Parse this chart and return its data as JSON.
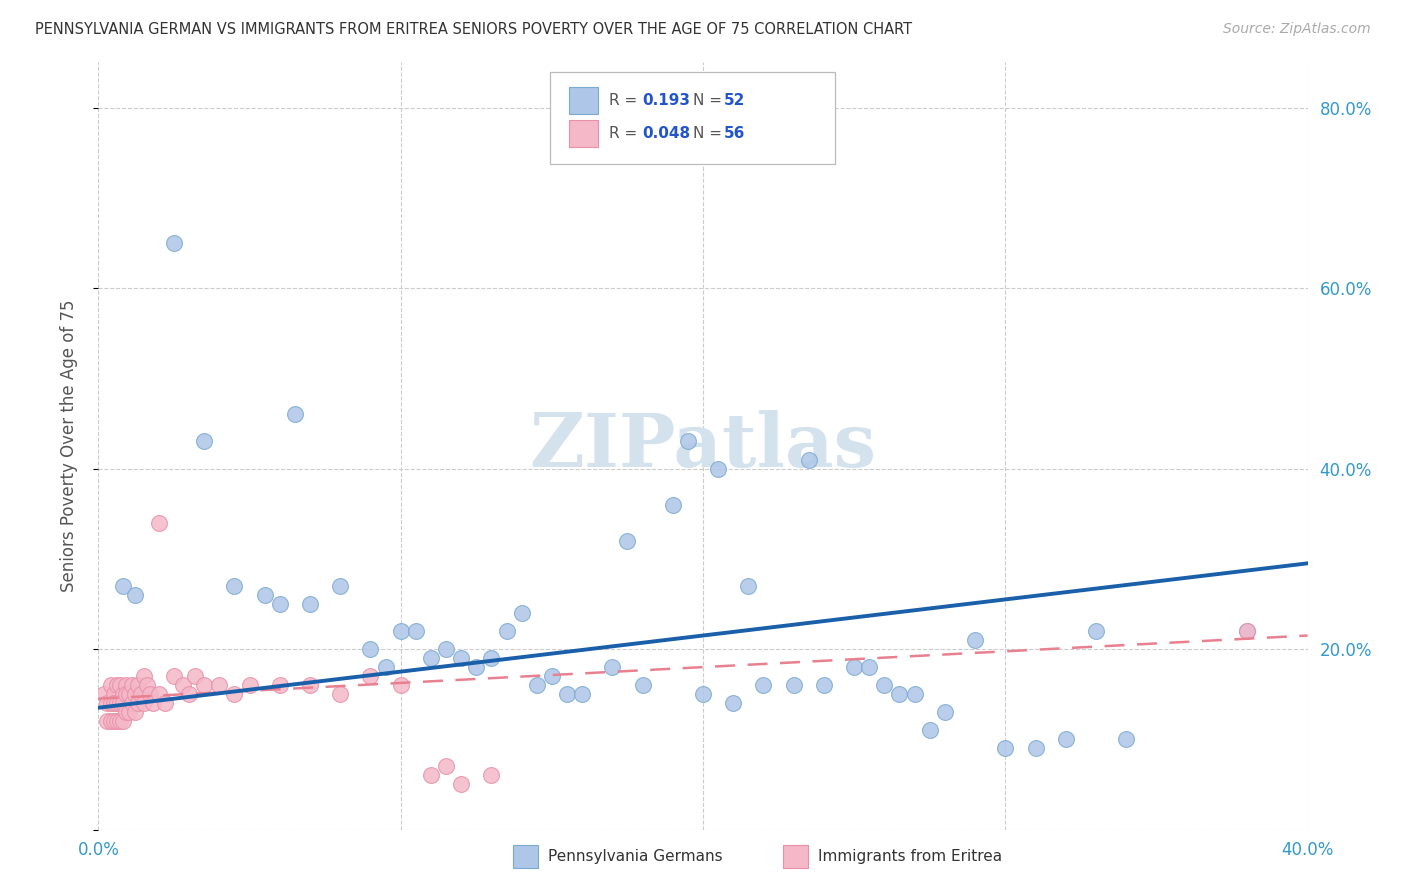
{
  "title": "PENNSYLVANIA GERMAN VS IMMIGRANTS FROM ERITREA SENIORS POVERTY OVER THE AGE OF 75 CORRELATION CHART",
  "source": "Source: ZipAtlas.com",
  "ylabel": "Seniors Poverty Over the Age of 75",
  "xlim": [
    0.0,
    0.4
  ],
  "ylim": [
    0.0,
    0.85
  ],
  "xticks": [
    0.0,
    0.1,
    0.2,
    0.3,
    0.4
  ],
  "xticklabels": [
    "0.0%",
    "",
    "",
    "",
    "40.0%"
  ],
  "yticks": [
    0.0,
    0.2,
    0.4,
    0.6,
    0.8
  ],
  "yticklabels_right": [
    "",
    "20.0%",
    "40.0%",
    "60.0%",
    "80.0%"
  ],
  "legend1_label": "Pennsylvania Germans",
  "legend2_label": "Immigrants from Eritrea",
  "R1": "0.193",
  "N1": "52",
  "R2": "0.048",
  "N2": "56",
  "blue_scatter_x": [
    0.008,
    0.012,
    0.025,
    0.035,
    0.045,
    0.055,
    0.06,
    0.065,
    0.07,
    0.08,
    0.09,
    0.095,
    0.1,
    0.105,
    0.11,
    0.115,
    0.12,
    0.125,
    0.13,
    0.135,
    0.14,
    0.145,
    0.15,
    0.155,
    0.16,
    0.17,
    0.175,
    0.18,
    0.19,
    0.195,
    0.2,
    0.205,
    0.21,
    0.215,
    0.22,
    0.23,
    0.235,
    0.24,
    0.25,
    0.255,
    0.26,
    0.265,
    0.27,
    0.275,
    0.28,
    0.29,
    0.3,
    0.31,
    0.32,
    0.33,
    0.34,
    0.38
  ],
  "blue_scatter_y": [
    0.27,
    0.26,
    0.65,
    0.43,
    0.27,
    0.26,
    0.25,
    0.46,
    0.25,
    0.27,
    0.2,
    0.18,
    0.22,
    0.22,
    0.19,
    0.2,
    0.19,
    0.18,
    0.19,
    0.22,
    0.24,
    0.16,
    0.17,
    0.15,
    0.15,
    0.18,
    0.32,
    0.16,
    0.36,
    0.43,
    0.15,
    0.4,
    0.14,
    0.27,
    0.16,
    0.16,
    0.41,
    0.16,
    0.18,
    0.18,
    0.16,
    0.15,
    0.15,
    0.11,
    0.13,
    0.21,
    0.09,
    0.09,
    0.1,
    0.22,
    0.1,
    0.22
  ],
  "pink_scatter_x": [
    0.002,
    0.003,
    0.003,
    0.004,
    0.004,
    0.004,
    0.005,
    0.005,
    0.005,
    0.006,
    0.006,
    0.006,
    0.007,
    0.007,
    0.007,
    0.008,
    0.008,
    0.008,
    0.009,
    0.009,
    0.009,
    0.01,
    0.01,
    0.011,
    0.011,
    0.012,
    0.012,
    0.013,
    0.013,
    0.014,
    0.015,
    0.015,
    0.016,
    0.017,
    0.018,
    0.02,
    0.022,
    0.025,
    0.028,
    0.03,
    0.032,
    0.035,
    0.04,
    0.045,
    0.05,
    0.06,
    0.07,
    0.08,
    0.09,
    0.1,
    0.11,
    0.115,
    0.12,
    0.13,
    0.02,
    0.38
  ],
  "pink_scatter_y": [
    0.15,
    0.14,
    0.12,
    0.16,
    0.14,
    0.12,
    0.15,
    0.14,
    0.12,
    0.16,
    0.14,
    0.12,
    0.16,
    0.14,
    0.12,
    0.15,
    0.14,
    0.12,
    0.16,
    0.15,
    0.13,
    0.15,
    0.13,
    0.16,
    0.14,
    0.15,
    0.13,
    0.16,
    0.14,
    0.15,
    0.17,
    0.14,
    0.16,
    0.15,
    0.14,
    0.15,
    0.14,
    0.17,
    0.16,
    0.15,
    0.17,
    0.16,
    0.16,
    0.15,
    0.16,
    0.16,
    0.16,
    0.15,
    0.17,
    0.16,
    0.06,
    0.07,
    0.05,
    0.06,
    0.34,
    0.22
  ],
  "blue_color": "#aec6e8",
  "blue_edge_color": "#7aaad0",
  "pink_color": "#f4b8c8",
  "pink_edge_color": "#e890a8",
  "blue_line_color": "#1a5faa",
  "blue_line_start_y": 0.135,
  "blue_line_end_y": 0.295,
  "pink_line_color": "#e88090",
  "pink_line_start_y": 0.145,
  "pink_line_end_y": 0.215,
  "watermark_text": "ZIPatlas",
  "watermark_color": "#d4e2ee"
}
